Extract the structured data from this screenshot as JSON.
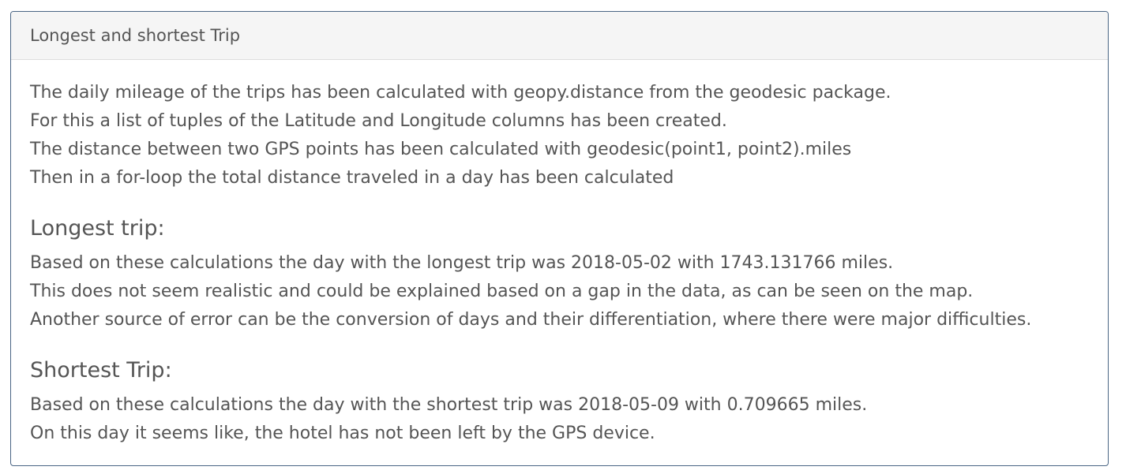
{
  "panel": {
    "heading": "Longest and shortest Trip",
    "intro": [
      "The daily mileage of the trips has been calculated with geopy.distance from the geodesic package.",
      "For this a list of tuples of the Latitude and Longitude columns has been created.",
      "The distance between two GPS points has been calculated with geodesic(point1, point2).miles",
      "Then in a for-loop the total distance traveled in a day has been calculated"
    ],
    "longest": {
      "title": "Longest trip:",
      "lines": [
        "Based on these calculations the day with the longest trip was 2018-05-02 with 1743.131766 miles.",
        "This does not seem realistic and could be explained based on a gap in the data, as can be seen on the map.",
        "Another source of error can be the conversion of days and their differentiation, where there were major difficulties."
      ]
    },
    "shortest": {
      "title": "Shortest Trip:",
      "lines": [
        "Based on these calculations the day with the shortest trip was 2018-05-09 with 0.709665 miles.",
        "On this day it seems like, the hotel has not been left by the GPS device."
      ]
    }
  }
}
